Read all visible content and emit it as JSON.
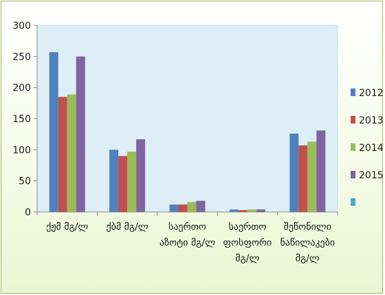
{
  "chart_data": {
    "type": "bar",
    "categories": [
      [
        "ქჟმ მგ/ლ"
      ],
      [
        "ქბმ მგ/ლ"
      ],
      [
        "საერთო",
        "აზოტი მგ/ლ"
      ],
      [
        "საერთო",
        "ფოსფორი",
        "მგ/ლ"
      ],
      [
        "შეწონილი",
        "ნაწილაკები",
        "მგ/ლ"
      ]
    ],
    "series": [
      {
        "name": "2012",
        "color": "#4f81bd",
        "values": [
          257,
          100,
          12,
          4,
          126
        ]
      },
      {
        "name": "2013",
        "color": "#c0504d",
        "values": [
          185,
          90,
          12,
          3,
          107
        ]
      },
      {
        "name": "2014",
        "color": "#9bbb59",
        "values": [
          189,
          97,
          16,
          4,
          113
        ]
      },
      {
        "name": "2015",
        "color": "#8064a2",
        "values": [
          250,
          117,
          18,
          4,
          131
        ]
      },
      {
        "name": "",
        "color": "#4bacc6",
        "values": [
          0,
          0,
          0,
          0,
          0
        ]
      }
    ],
    "ylim": [
      0,
      300
    ],
    "yticks": [
      0,
      50,
      100,
      150,
      200,
      250,
      300
    ],
    "grid": false,
    "legend": "right",
    "plot_background": "#ddeef6"
  }
}
